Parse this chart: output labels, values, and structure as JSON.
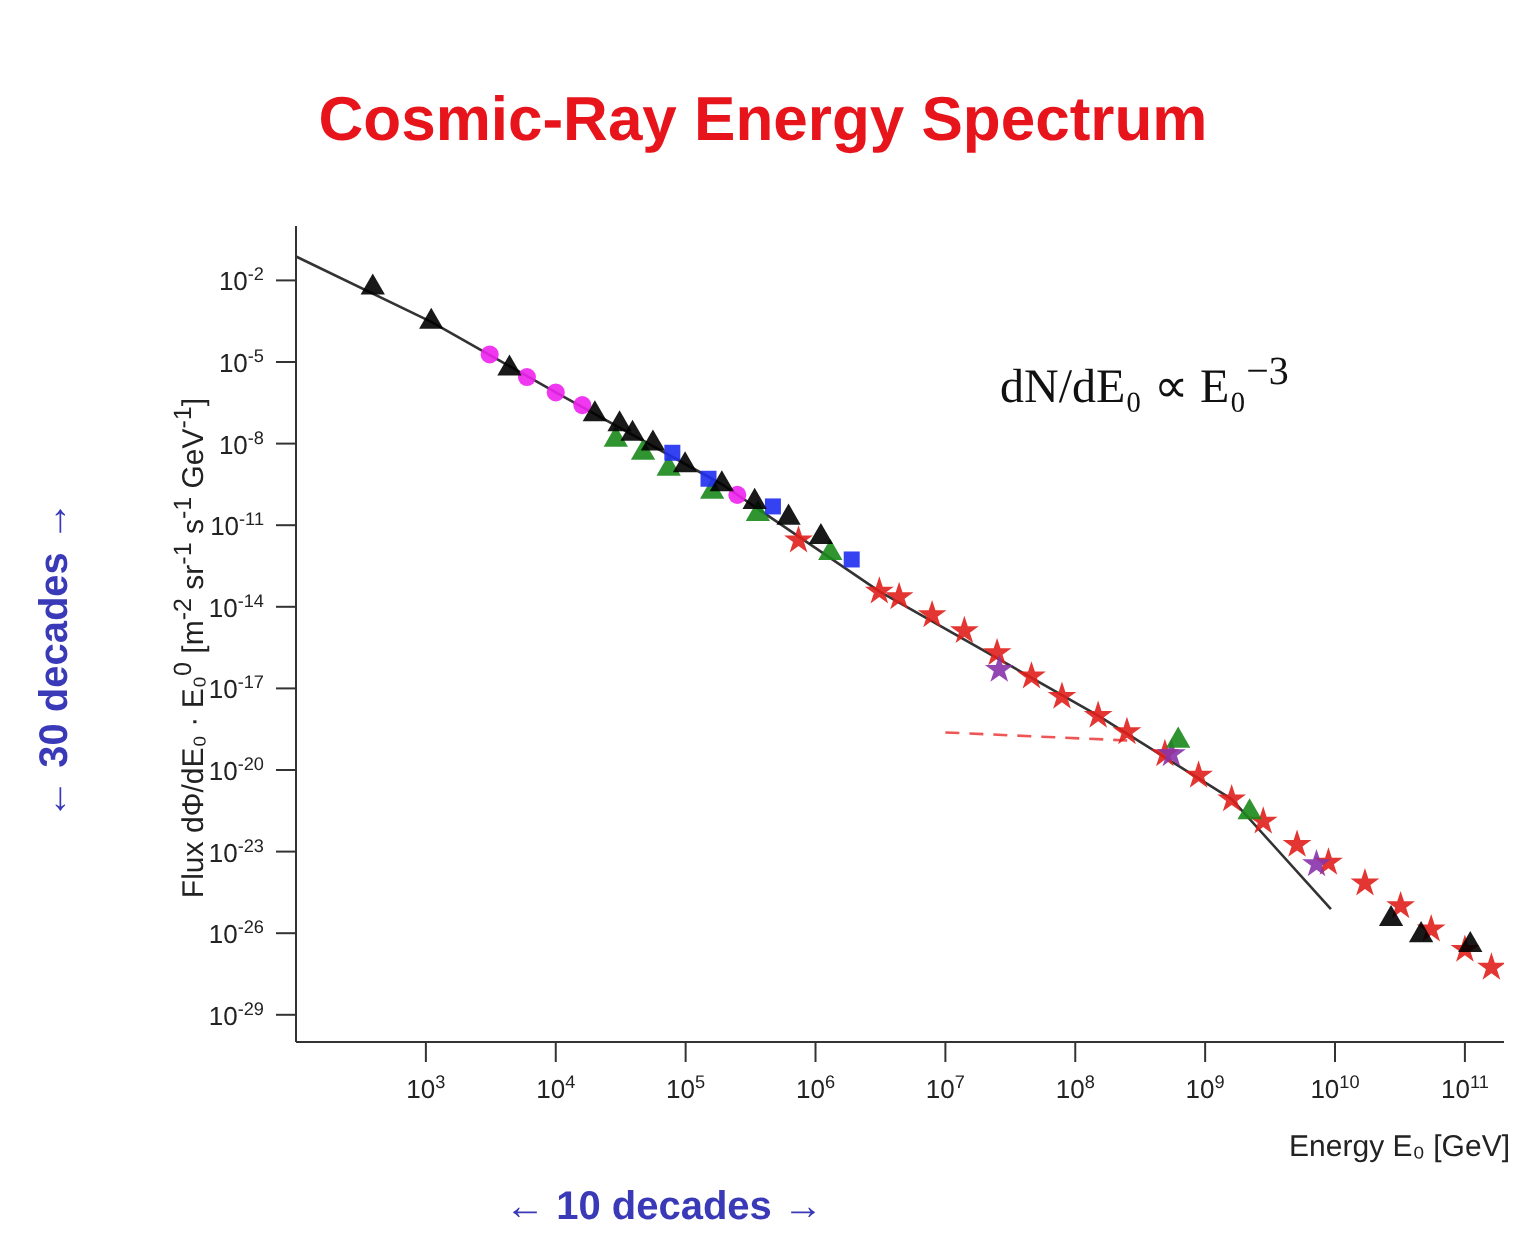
{
  "chart_data": {
    "type": "scatter",
    "title": "Cosmic-Ray Energy Spectrum",
    "xlabel": "Energy E₀ [GeV]",
    "ylabel": "Flux dΦ/dE₀ · E₀$^{0}$ [m$^{-2}$ sr$^{-1}$ s$^{-1}$ GeV$^{-1}$]",
    "annotations": [
      "dN/dE₀ ∝ E₀$^{−3}$",
      "← 30 decades →",
      "← 10 decades →"
    ],
    "log": "xy",
    "grid": false,
    "xlim": [
      100,
      200000000000
    ],
    "ylim": [
      1e-30,
      1
    ],
    "xticks": [
      {
        "value": 1000.0,
        "label": "10$^{3}$"
      },
      {
        "value": 10000.0,
        "label": "10$^{4}$"
      },
      {
        "value": 100000.0,
        "label": "10$^{5}$"
      },
      {
        "value": 1000000.0,
        "label": "10$^{6}$"
      },
      {
        "value": 10000000.0,
        "label": "10$^{7}$"
      },
      {
        "value": 100000000.0,
        "label": "10$^{8}$"
      },
      {
        "value": 1000000000.0,
        "label": "10$^{9}$"
      },
      {
        "value": 10000000000.0,
        "label": "10$^{10}$"
      },
      {
        "value": 100000000000.0,
        "label": "10$^{11}$"
      }
    ],
    "yticks": [
      {
        "value": 0.01,
        "label": "10$^{-2}$"
      },
      {
        "value": 1e-05,
        "label": "10$^{-5}$"
      },
      {
        "value": 1e-08,
        "label": "10$^{-8}$"
      },
      {
        "value": 1e-11,
        "label": "10$^{-11}$"
      },
      {
        "value": 1e-14,
        "label": "10$^{-14}$"
      },
      {
        "value": 1e-17,
        "label": "10$^{-17}$"
      },
      {
        "value": 1e-20,
        "label": "10$^{-20}$"
      },
      {
        "value": 1e-23,
        "label": "10$^{-23}$"
      },
      {
        "value": 1e-26,
        "label": "10$^{-26}$"
      },
      {
        "value": 1e-29,
        "label": "10$^{-29}$"
      }
    ],
    "series": [
      {
        "type": "line",
        "color": "#333333",
        "line_style": "solid",
        "x": [
          100.0,
          1100.0,
          10000.0,
          190000.0,
          3100000.0,
          150000000.0,
          1600000000.0,
          9300000000.0
        ],
        "values": [
          0.076,
          0.0003,
          7.6e-07,
          3.2e-10,
          3.7e-14,
          1e-18,
          8.5e-22,
          7.6e-26
        ]
      },
      {
        "type": "line",
        "color": "#ee5555",
        "line_style": "dashed",
        "x": [
          10000000.0,
          270000000.0
        ],
        "values": [
          2.4e-19,
          1.2e-19
        ]
      },
      {
        "color": "#e0201c",
        "marker": "star",
        "x": [
          740000.0,
          3100000.0,
          4400000.0,
          7900000.0,
          14000000.0,
          25000000.0,
          46000000.0,
          79000000.0,
          150000000.0,
          250000000.0,
          490000000.0,
          890000000.0,
          1600000000.0,
          2800000000.0,
          5100000000.0,
          8900000000.0,
          17000000000.0,
          32000000000.0,
          55000000000.0,
          100000000000.0,
          160000000000.0
        ],
        "values": [
          2.8e-12,
          3.7e-14,
          2.3e-14,
          5e-15,
          1.3e-15,
          2e-16,
          2.8e-17,
          5e-18,
          1e-18,
          2.5e-19,
          3.9e-20,
          6.3e-21,
          8.5e-22,
          1.3e-22,
          1.8e-23,
          4e-24,
          6.9e-25,
          1e-25,
          1.4e-26,
          2.5e-27,
          5.5e-28
        ]
      },
      {
        "color": "#8833aa",
        "marker": "star",
        "x": [
          26000000.0,
          550000000.0,
          7200000000.0
        ],
        "values": [
          4.9e-17,
          3.9e-20,
          3.5e-24
        ]
      },
      {
        "color": "#ee22ee",
        "marker": "circle",
        "x": [
          3100.0,
          6000.0,
          10000.0,
          16000.0,
          250000.0
        ],
        "values": [
          1.9e-05,
          2.8e-06,
          7.6e-07,
          2.6e-07,
          1.3e-10
        ]
      },
      {
        "color": "#1a8a1a",
        "marker": "triangle",
        "x": [
          29000.0,
          47000.0,
          74000.0,
          160000.0,
          360000.0,
          1300000.0,
          620000000.0,
          2200000000.0
        ],
        "values": [
          1.4e-08,
          4.6e-09,
          1.2e-09,
          1.7e-10,
          2.6e-11,
          9.5e-13,
          1.2e-19,
          2.8e-22
        ]
      },
      {
        "color": "#1f2ef0",
        "marker": "square",
        "x": [
          79000.0,
          150000.0,
          470000.0,
          1900000.0
        ],
        "values": [
          4.6e-09,
          5.1e-10,
          4.9e-11,
          5.5e-13
        ]
      },
      {
        "color": "#000000",
        "marker": "triangle",
        "x": [
          390.0,
          1100.0,
          4400.0,
          20000.0,
          31000.0,
          39000.0,
          56000.0,
          99000.0,
          190000.0,
          340000.0,
          620000.0,
          1100000.0,
          27000000000.0,
          46000000000.0,
          110000000000.0
        ],
        "values": [
          0.0055,
          0.0003,
          5.8e-06,
          1.2e-07,
          5.1e-08,
          2.3e-08,
          1e-08,
          1.6e-09,
          3.2e-10,
          7.2e-11,
          1.9e-11,
          3.7e-12,
          3.3e-26,
          8.5e-27,
          3.7e-27
        ]
      }
    ]
  }
}
